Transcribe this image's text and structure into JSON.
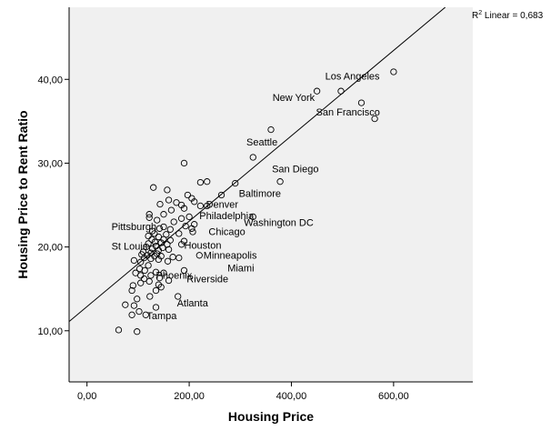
{
  "chart_data": {
    "type": "scatter",
    "xlabel": "Housing Price",
    "ylabel": "Housing Price to Rent Ratio",
    "xlim": [
      -35,
      755
    ],
    "ylim": [
      3.9,
      48.6
    ],
    "x_ticks": [
      0,
      200,
      400,
      600
    ],
    "x_tick_labels": [
      "0,00",
      "200,00",
      "400,00",
      "600,00"
    ],
    "y_ticks": [
      10,
      20,
      30,
      40
    ],
    "y_tick_labels": [
      "10,00",
      "20,00",
      "30,00",
      "40,00"
    ],
    "grid": false,
    "background": "#f0f0f0",
    "fit_line": {
      "legend_prefix": "R",
      "legend_sup": "2",
      "legend_text": " Linear = 0,683",
      "x": [
        -35,
        701
      ],
      "y": [
        11.1,
        48.6
      ]
    },
    "points": [
      {
        "x": 600,
        "y": 40.9
      },
      {
        "x": 497,
        "y": 38.6
      },
      {
        "x": 450,
        "y": 38.6
      },
      {
        "x": 537,
        "y": 37.2
      },
      {
        "x": 563,
        "y": 35.3
      },
      {
        "x": 360,
        "y": 34.0
      },
      {
        "x": 325,
        "y": 30.7
      },
      {
        "x": 378,
        "y": 27.8
      },
      {
        "x": 290,
        "y": 27.6
      },
      {
        "x": 325,
        "y": 23.6
      },
      {
        "x": 190,
        "y": 30.0
      },
      {
        "x": 235,
        "y": 27.8
      },
      {
        "x": 222,
        "y": 27.7
      },
      {
        "x": 263,
        "y": 26.2
      },
      {
        "x": 130,
        "y": 27.1
      },
      {
        "x": 157,
        "y": 26.8
      },
      {
        "x": 197,
        "y": 26.2
      },
      {
        "x": 205,
        "y": 25.8
      },
      {
        "x": 210,
        "y": 25.4
      },
      {
        "x": 160,
        "y": 25.6
      },
      {
        "x": 175,
        "y": 25.3
      },
      {
        "x": 185,
        "y": 25.0
      },
      {
        "x": 143,
        "y": 25.1
      },
      {
        "x": 222,
        "y": 24.9
      },
      {
        "x": 235,
        "y": 24.9
      },
      {
        "x": 190,
        "y": 24.6
      },
      {
        "x": 165,
        "y": 24.4
      },
      {
        "x": 122,
        "y": 23.9
      },
      {
        "x": 150,
        "y": 23.9
      },
      {
        "x": 200,
        "y": 23.6
      },
      {
        "x": 122,
        "y": 23.5
      },
      {
        "x": 137,
        "y": 23.2
      },
      {
        "x": 185,
        "y": 23.4
      },
      {
        "x": 170,
        "y": 23.0
      },
      {
        "x": 210,
        "y": 22.7
      },
      {
        "x": 193,
        "y": 22.5
      },
      {
        "x": 150,
        "y": 22.4
      },
      {
        "x": 205,
        "y": 22.2
      },
      {
        "x": 163,
        "y": 22.1
      },
      {
        "x": 142,
        "y": 22.2
      },
      {
        "x": 128,
        "y": 21.9
      },
      {
        "x": 180,
        "y": 21.6
      },
      {
        "x": 207,
        "y": 21.8
      },
      {
        "x": 132,
        "y": 21.6
      },
      {
        "x": 155,
        "y": 21.5
      },
      {
        "x": 120,
        "y": 21.3
      },
      {
        "x": 140,
        "y": 21.2
      },
      {
        "x": 127,
        "y": 20.9
      },
      {
        "x": 150,
        "y": 20.9
      },
      {
        "x": 163,
        "y": 20.8
      },
      {
        "x": 133,
        "y": 20.6
      },
      {
        "x": 145,
        "y": 20.5
      },
      {
        "x": 120,
        "y": 20.4
      },
      {
        "x": 157,
        "y": 20.3
      },
      {
        "x": 185,
        "y": 20.3
      },
      {
        "x": 135,
        "y": 20.1
      },
      {
        "x": 148,
        "y": 19.9
      },
      {
        "x": 116,
        "y": 20.0
      },
      {
        "x": 128,
        "y": 19.8
      },
      {
        "x": 140,
        "y": 19.6
      },
      {
        "x": 160,
        "y": 19.7
      },
      {
        "x": 110,
        "y": 19.4
      },
      {
        "x": 125,
        "y": 19.3
      },
      {
        "x": 137,
        "y": 19.2
      },
      {
        "x": 107,
        "y": 19.1
      },
      {
        "x": 118,
        "y": 19.0
      },
      {
        "x": 132,
        "y": 18.9
      },
      {
        "x": 145,
        "y": 18.9
      },
      {
        "x": 168,
        "y": 18.8
      },
      {
        "x": 112,
        "y": 18.7
      },
      {
        "x": 125,
        "y": 18.6
      },
      {
        "x": 140,
        "y": 18.5
      },
      {
        "x": 92,
        "y": 18.4
      },
      {
        "x": 105,
        "y": 18.2
      },
      {
        "x": 158,
        "y": 18.3
      },
      {
        "x": 120,
        "y": 17.8
      },
      {
        "x": 103,
        "y": 17.4
      },
      {
        "x": 113,
        "y": 17.2
      },
      {
        "x": 135,
        "y": 17.0
      },
      {
        "x": 150,
        "y": 16.9
      },
      {
        "x": 95,
        "y": 16.9
      },
      {
        "x": 125,
        "y": 16.6
      },
      {
        "x": 105,
        "y": 16.6
      },
      {
        "x": 142,
        "y": 16.3
      },
      {
        "x": 112,
        "y": 16.2
      },
      {
        "x": 160,
        "y": 16.0
      },
      {
        "x": 122,
        "y": 15.9
      },
      {
        "x": 140,
        "y": 15.5
      },
      {
        "x": 90,
        "y": 15.4
      },
      {
        "x": 105,
        "y": 15.7
      },
      {
        "x": 135,
        "y": 14.8
      },
      {
        "x": 145,
        "y": 15.2
      },
      {
        "x": 178,
        "y": 14.1
      },
      {
        "x": 88,
        "y": 14.8
      },
      {
        "x": 123,
        "y": 14.1
      },
      {
        "x": 98,
        "y": 13.8
      },
      {
        "x": 75,
        "y": 13.1
      },
      {
        "x": 92,
        "y": 13.0
      },
      {
        "x": 135,
        "y": 12.8
      },
      {
        "x": 102,
        "y": 12.3
      },
      {
        "x": 115,
        "y": 11.9
      },
      {
        "x": 88,
        "y": 11.9
      },
      {
        "x": 62,
        "y": 10.1
      },
      {
        "x": 98,
        "y": 9.9
      },
      {
        "x": 190,
        "y": 17.2
      },
      {
        "x": 180,
        "y": 18.7
      },
      {
        "x": 220,
        "y": 19.0
      },
      {
        "x": 190,
        "y": 20.7
      }
    ],
    "labels": [
      {
        "text": "Los Angeles",
        "x": 466,
        "y": 40.0
      },
      {
        "text": "New York",
        "x": 363,
        "y": 37.4
      },
      {
        "text": "San Francisco",
        "x": 448,
        "y": 35.7
      },
      {
        "text": "Seattle",
        "x": 312,
        "y": 32.1
      },
      {
        "text": "San Diego",
        "x": 362,
        "y": 28.9
      },
      {
        "text": "Baltimore",
        "x": 297,
        "y": 26.0
      },
      {
        "text": "Denver",
        "x": 233,
        "y": 24.7
      },
      {
        "text": "Philadelphia",
        "x": 220,
        "y": 23.3
      },
      {
        "text": "Washington DC",
        "x": 307,
        "y": 22.5
      },
      {
        "text": "Chicago",
        "x": 238,
        "y": 21.4
      },
      {
        "text": "Pittsburgh",
        "x": 48,
        "y": 22.0
      },
      {
        "text": "Houston",
        "x": 190,
        "y": 19.8
      },
      {
        "text": "St Louis",
        "x": 48,
        "y": 19.7
      },
      {
        "text": "Minneapolis",
        "x": 228,
        "y": 18.6
      },
      {
        "text": "Miami",
        "x": 275,
        "y": 17.1
      },
      {
        "text": "Phoenix",
        "x": 135,
        "y": 16.2
      },
      {
        "text": "Riverside",
        "x": 195,
        "y": 15.8
      },
      {
        "text": "Atlanta",
        "x": 176,
        "y": 12.9
      },
      {
        "text": "Tampa",
        "x": 117,
        "y": 11.4
      }
    ]
  }
}
